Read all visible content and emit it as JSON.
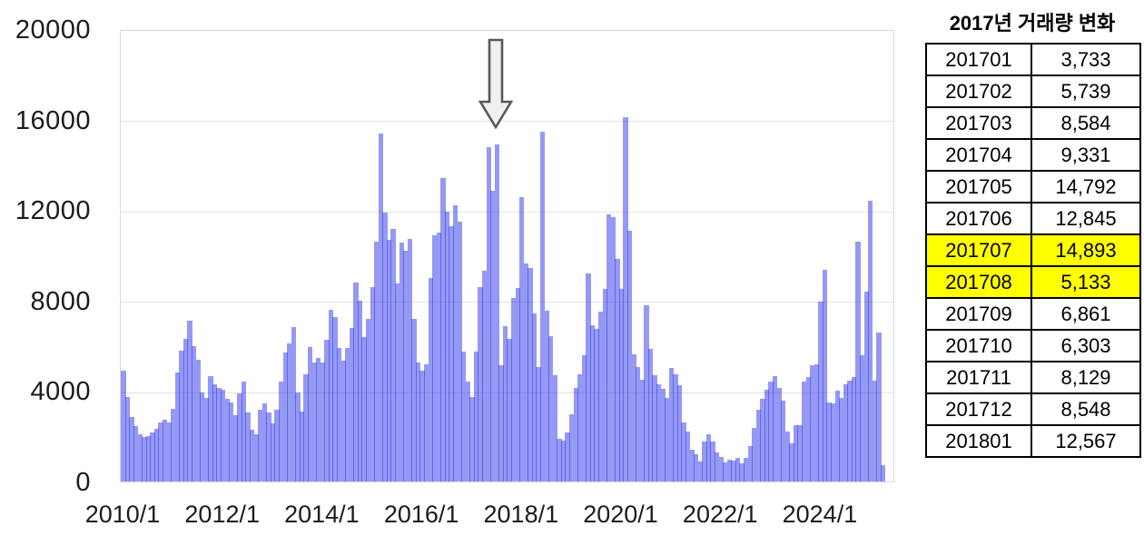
{
  "page": {
    "background": "#ffffff"
  },
  "chart_data": {
    "type": "bar",
    "title": "",
    "xlabel": "",
    "ylabel": "",
    "ylim": [
      0,
      20000
    ],
    "y_ticks": [
      0,
      4000,
      8000,
      12000,
      16000,
      20000
    ],
    "x_tick_labels": [
      "2010/1",
      "2012/1",
      "2014/1",
      "2016/1",
      "2018/1",
      "2020/1",
      "2022/1",
      "2024/1"
    ],
    "x_tick_month_indices": [
      0,
      24,
      48,
      72,
      96,
      120,
      144,
      168
    ],
    "grid": "horizontal",
    "legend": "none",
    "bar_color": "rgba(43,51,233,0.5)",
    "gridline_color": "#e2e2e2",
    "months": [
      "2010/01",
      "2010/02",
      "2010/03",
      "2010/04",
      "2010/05",
      "2010/06",
      "2010/07",
      "2010/08",
      "2010/09",
      "2010/10",
      "2010/11",
      "2010/12",
      "2011/01",
      "2011/02",
      "2011/03",
      "2011/04",
      "2011/05",
      "2011/06",
      "2011/07",
      "2011/08",
      "2011/09",
      "2011/10",
      "2011/11",
      "2011/12",
      "2012/01",
      "2012/02",
      "2012/03",
      "2012/04",
      "2012/05",
      "2012/06",
      "2012/07",
      "2012/08",
      "2012/09",
      "2012/10",
      "2012/11",
      "2012/12",
      "2013/01",
      "2013/02",
      "2013/03",
      "2013/04",
      "2013/05",
      "2013/06",
      "2013/07",
      "2013/08",
      "2013/09",
      "2013/10",
      "2013/11",
      "2013/12",
      "2014/01",
      "2014/02",
      "2014/03",
      "2014/04",
      "2014/05",
      "2014/06",
      "2014/07",
      "2014/08",
      "2014/09",
      "2014/10",
      "2014/11",
      "2014/12",
      "2015/01",
      "2015/02",
      "2015/03",
      "2015/04",
      "2015/05",
      "2015/06",
      "2015/07",
      "2015/08",
      "2015/09",
      "2015/10",
      "2015/11",
      "2015/12",
      "2016/01",
      "2016/02",
      "2016/03",
      "2016/04",
      "2016/05",
      "2016/06",
      "2016/07",
      "2016/08",
      "2016/09",
      "2016/10",
      "2016/11",
      "2016/12",
      "2017/01",
      "2017/02",
      "2017/03",
      "2017/04",
      "2017/05",
      "2017/06",
      "2017/07",
      "2017/08",
      "2017/09",
      "2017/10",
      "2017/11",
      "2017/12",
      "2018/01",
      "2018/02",
      "2018/03",
      "2018/04",
      "2018/05",
      "2018/06",
      "2018/07",
      "2018/08",
      "2018/09",
      "2018/10",
      "2018/11",
      "2018/12",
      "2019/01",
      "2019/02",
      "2019/03",
      "2019/04",
      "2019/05",
      "2019/06",
      "2019/07",
      "2019/08",
      "2019/09",
      "2019/10",
      "2019/11",
      "2019/12",
      "2020/01",
      "2020/02",
      "2020/03",
      "2020/04",
      "2020/05",
      "2020/06",
      "2020/07",
      "2020/08",
      "2020/09",
      "2020/10",
      "2020/11",
      "2020/12",
      "2021/01",
      "2021/02",
      "2021/03",
      "2021/04",
      "2021/05",
      "2021/06",
      "2021/07",
      "2021/08",
      "2021/09",
      "2021/10",
      "2021/11",
      "2021/12",
      "2022/01",
      "2022/02",
      "2022/03",
      "2022/04",
      "2022/05",
      "2022/06",
      "2022/07",
      "2022/08",
      "2022/09",
      "2022/10",
      "2022/11",
      "2022/12",
      "2023/01",
      "2023/02",
      "2023/03",
      "2023/04",
      "2023/05",
      "2023/06",
      "2023/07",
      "2023/08",
      "2023/09",
      "2023/10",
      "2023/11",
      "2023/12",
      "2024/01",
      "2024/02",
      "2024/03",
      "2024/04",
      "2024/05",
      "2024/06",
      "2024/07",
      "2024/08",
      "2024/09",
      "2024/10",
      "2024/11",
      "2024/12",
      "2025/01",
      "2025/02",
      "2025/03",
      "2025/04"
    ],
    "values": [
      4900,
      3750,
      2850,
      2450,
      2100,
      1950,
      2000,
      2150,
      2350,
      2600,
      2750,
      2600,
      3200,
      4800,
      5800,
      6300,
      7100,
      6000,
      5400,
      3950,
      3700,
      4650,
      4300,
      4150,
      4050,
      3650,
      3500,
      2950,
      3900,
      4400,
      3050,
      2300,
      2100,
      3180,
      3450,
      3050,
      2580,
      3180,
      4400,
      5700,
      6090,
      6840,
      3950,
      3100,
      4750,
      5950,
      5250,
      5450,
      5250,
      6250,
      7600,
      7250,
      5900,
      5350,
      5900,
      6800,
      8800,
      8000,
      6400,
      7200,
      8600,
      10600,
      15400,
      11900,
      10700,
      11150,
      8740,
      10580,
      10190,
      10730,
      7180,
      5270,
      4910,
      5170,
      9000,
      10900,
      11000,
      13420,
      11930,
      11290,
      12210,
      11500,
      5760,
      4410,
      3733,
      5739,
      8584,
      9331,
      14792,
      12845,
      14893,
      5133,
      6861,
      6303,
      8129,
      8548,
      12567,
      9630,
      9420,
      7420,
      5080,
      15460,
      7550,
      6440,
      4680,
      1870,
      1810,
      2150,
      2970,
      4120,
      4730,
      5600,
      9210,
      6900,
      6760,
      7500,
      8500,
      11800,
      11700,
      9830,
      8500,
      16100,
      11100,
      5630,
      5070,
      4500,
      7800,
      5880,
      4700,
      4300,
      4100,
      3710,
      5020,
      4730,
      4240,
      2610,
      2200,
      1390,
      1200,
      900,
      1750,
      2080,
      1750,
      1300,
      1100,
      850,
      950,
      930,
      1050,
      800,
      1060,
      1550,
      2360,
      3180,
      3650,
      4040,
      4400,
      4650,
      4120,
      3590,
      2210,
      1670,
      2490,
      2490,
      4400,
      4600,
      5140,
      5200,
      7960,
      9350,
      3510,
      3450,
      4000,
      3700,
      4280,
      4450,
      4600,
      10600,
      5590,
      8400,
      12400,
      4450,
      6570,
      730
    ],
    "annotation": {
      "type": "down-arrow",
      "points_at_month": "2017/07",
      "fill": "#f0f0f0",
      "stroke": "#595959"
    }
  },
  "table": {
    "title": "2017년 거래량 변화",
    "highlight_color": "#ffff00",
    "columns": [
      "month",
      "volume"
    ],
    "rows": [
      {
        "month": "201701",
        "value": "3,733",
        "highlight": false
      },
      {
        "month": "201702",
        "value": "5,739",
        "highlight": false
      },
      {
        "month": "201703",
        "value": "8,584",
        "highlight": false
      },
      {
        "month": "201704",
        "value": "9,331",
        "highlight": false
      },
      {
        "month": "201705",
        "value": "14,792",
        "highlight": false
      },
      {
        "month": "201706",
        "value": "12,845",
        "highlight": false
      },
      {
        "month": "201707",
        "value": "14,893",
        "highlight": true
      },
      {
        "month": "201708",
        "value": "5,133",
        "highlight": true
      },
      {
        "month": "201709",
        "value": "6,861",
        "highlight": false
      },
      {
        "month": "201710",
        "value": "6,303",
        "highlight": false
      },
      {
        "month": "201711",
        "value": "8,129",
        "highlight": false
      },
      {
        "month": "201712",
        "value": "8,548",
        "highlight": false
      },
      {
        "month": "201801",
        "value": "12,567",
        "highlight": false
      }
    ]
  }
}
